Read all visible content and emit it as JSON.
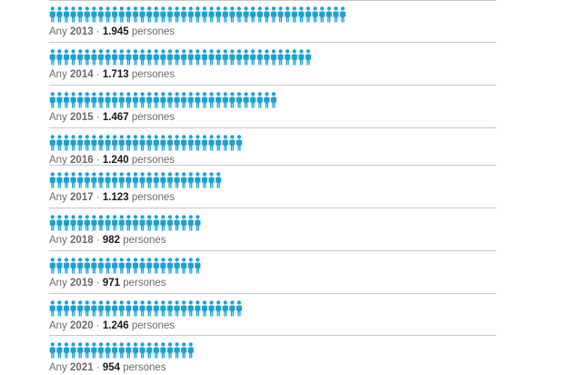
{
  "chart_data": {
    "type": "pictogram",
    "icon": "person-icon",
    "icon_color": "#1aa1d6",
    "caption_prefix": "Any",
    "caption_suffix": "persones",
    "separator": "·",
    "rows": [
      {
        "year": "2013",
        "value_label": "1.945",
        "value": 1945
      },
      {
        "year": "2014",
        "value_label": "1.713",
        "value": 1713
      },
      {
        "year": "2015",
        "value_label": "1.467",
        "value": 1467
      },
      {
        "year": "2016",
        "value_label": "1.240",
        "value": 1240
      },
      {
        "year": "2017",
        "value_label": "1.123",
        "value": 1123
      },
      {
        "year": "2018",
        "value_label": "982",
        "value": 982
      },
      {
        "year": "2019",
        "value_label": "971",
        "value": 971
      },
      {
        "year": "2020",
        "value_label": "1.246",
        "value": 1246
      },
      {
        "year": "2021",
        "value_label": "954",
        "value": 954
      }
    ]
  },
  "colors": {
    "icon": "#1aa1d6",
    "rule": "#c8c8c8",
    "caption_text": "#6b6b6b",
    "value_text": "#1a1a1a"
  }
}
